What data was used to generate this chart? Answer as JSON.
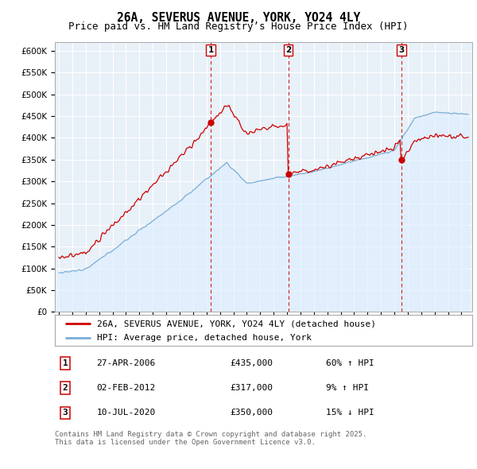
{
  "title": "26A, SEVERUS AVENUE, YORK, YO24 4LY",
  "subtitle": "Price paid vs. HM Land Registry’s House Price Index (HPI)",
  "legend_house": "26A, SEVERUS AVENUE, YORK, YO24 4LY (detached house)",
  "legend_hpi": "HPI: Average price, detached house, York",
  "house_color": "#cc0000",
  "hpi_color": "#7aaed6",
  "hpi_fill_color": "#ddeeff",
  "vline_color": "#cc0000",
  "background_color": "#ffffff",
  "grid_color": "#cccccc",
  "ylim": [
    0,
    620000
  ],
  "yticks": [
    0,
    50000,
    100000,
    150000,
    200000,
    250000,
    300000,
    350000,
    400000,
    450000,
    500000,
    550000,
    600000
  ],
  "ytick_labels": [
    "£0",
    "£50K",
    "£100K",
    "£150K",
    "£200K",
    "£250K",
    "£300K",
    "£350K",
    "£400K",
    "£450K",
    "£500K",
    "£550K",
    "£600K"
  ],
  "transactions": [
    {
      "num": 1,
      "date": "27-APR-2006",
      "price": 435000,
      "pct": "60%",
      "dir": "↑",
      "year": 2006.32
    },
    {
      "num": 2,
      "date": "02-FEB-2012",
      "price": 317000,
      "pct": "9%",
      "dir": "↑",
      "year": 2012.09
    },
    {
      "num": 3,
      "date": "10-JUL-2020",
      "price": 350000,
      "pct": "15%",
      "dir": "↓",
      "year": 2020.53
    }
  ],
  "footer": "Contains HM Land Registry data © Crown copyright and database right 2025.\nThis data is licensed under the Open Government Licence v3.0.",
  "title_fontsize": 10.5,
  "subtitle_fontsize": 9,
  "tick_fontsize": 7.5,
  "legend_fontsize": 8,
  "footer_fontsize": 6.5,
  "table_fontsize": 8
}
